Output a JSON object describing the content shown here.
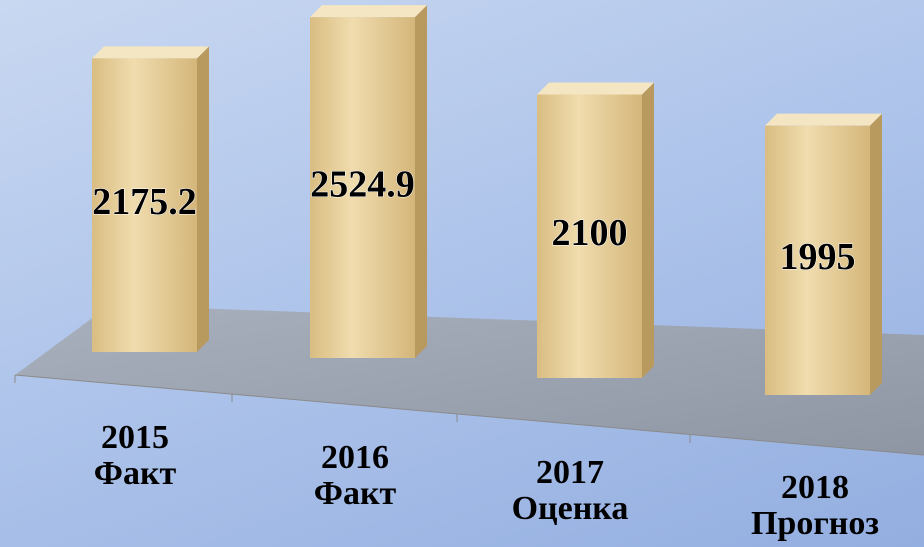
{
  "chart_data": {
    "type": "bar3d",
    "categories": [
      "2015\nФакт",
      "2016\nФакт",
      "2017\nОценка",
      "2018\nПрогноз"
    ],
    "values": [
      2175.2,
      2524.9,
      2100,
      1995
    ],
    "color": "#e8cf98"
  }
}
